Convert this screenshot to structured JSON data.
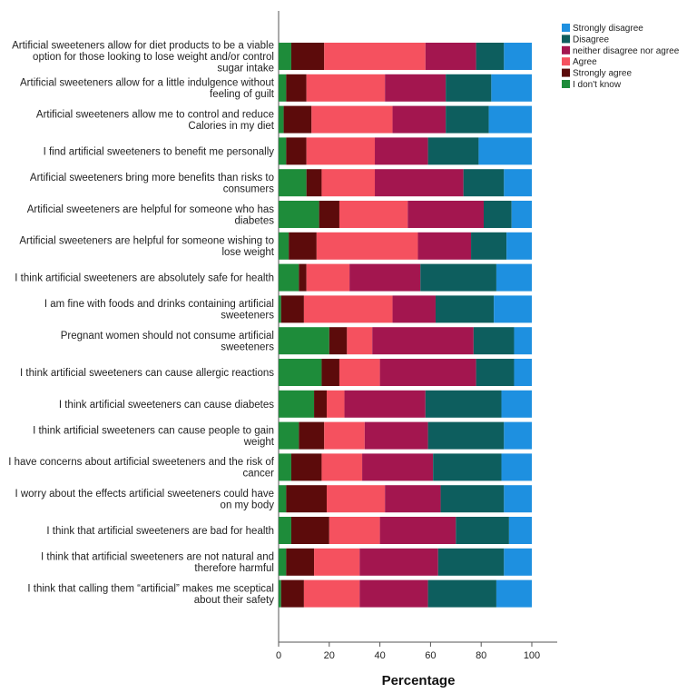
{
  "chart_data": {
    "type": "bar",
    "orientation": "horizontal",
    "stacked": true,
    "title": "",
    "xlabel": "Percentage",
    "ylabel": "",
    "xlim": [
      0,
      100
    ],
    "xticks": [
      "0",
      "20",
      "40",
      "60",
      "80",
      "100"
    ],
    "categories": [
      "Artificial sweeteners allow for diet products to be a viable option for those looking to lose weight and/or control sugar intake",
      "Artificial sweeteners allow for a little indulgence without feeling of guilt",
      "Artificial sweeteners allow me to control and reduce Calories in my diet",
      "I find artificial sweeteners to benefit me personally",
      "Artificial sweeteners bring more benefits than risks to consumers",
      "Artificial sweeteners are helpful for someone who has diabetes",
      "Artificial sweeteners are helpful for someone wishing to lose weight",
      "I think artificial sweeteners are absolutely safe for health",
      "I am fine with foods and drinks containing artificial sweeteners",
      "Pregnant women should not consume artificial sweeteners",
      "I think artificial sweeteners can cause allergic reactions",
      "I think artificial sweeteners can cause diabetes",
      "I think artificial sweeteners can cause people to gain weight",
      "I have concerns about artificial sweeteners and the risk of cancer",
      "I worry about the effects artificial sweeteners could have on my body",
      "I think that artificial sweeteners are bad for health",
      "I think that artificial sweeteners are not natural and therefore harmful",
      "I think that calling them “artificial” makes me sceptical about their safety"
    ],
    "category_lines": [
      [
        "Artificial sweeteners allow for diet products to be a viable",
        "option for those looking to lose weight and/or control",
        "sugar intake"
      ],
      [
        "Artificial sweeteners allow for a little indulgence without",
        "feeling of guilt"
      ],
      [
        "Artificial sweeteners allow me to control and reduce",
        "Calories in my diet"
      ],
      [
        "I find artificial sweeteners to benefit me personally"
      ],
      [
        "Artificial sweeteners bring more benefits than risks to",
        "consumers"
      ],
      [
        "Artificial sweeteners are helpful for someone who has",
        "diabetes"
      ],
      [
        "Artificial sweeteners are helpful for someone wishing to",
        "lose weight"
      ],
      [
        "I think artificial sweeteners are absolutely safe for health"
      ],
      [
        "I am fine with foods and drinks containing artificial",
        "sweeteners"
      ],
      [
        "Pregnant women should not consume artificial",
        "sweeteners"
      ],
      [
        "I think artificial sweeteners can cause allergic reactions"
      ],
      [
        "I think artificial sweeteners can cause diabetes"
      ],
      [
        "I think artificial sweeteners can cause people to gain",
        "weight"
      ],
      [
        "I have concerns about artificial sweeteners and the risk of",
        "cancer"
      ],
      [
        "I worry about the effects artificial sweeteners could have",
        "on my body"
      ],
      [
        "I think that artificial sweeteners are bad for health"
      ],
      [
        "I think that artificial sweeteners are not natural and",
        "therefore harmful"
      ],
      [
        "I think that calling them “artificial” makes me sceptical",
        "about their safety"
      ]
    ],
    "series": [
      {
        "name": "I don't know",
        "color": "#1e8c3a",
        "values": [
          5,
          3,
          2,
          3,
          11,
          16,
          4,
          8,
          1,
          20,
          17,
          14,
          8,
          5,
          3,
          5,
          3,
          1
        ]
      },
      {
        "name": "Strongly agree",
        "color": "#5c0b0b",
        "values": [
          13,
          8,
          11,
          8,
          6,
          8,
          11,
          3,
          9,
          7,
          7,
          5,
          10,
          12,
          16,
          15,
          11,
          9
        ]
      },
      {
        "name": "Agree",
        "color": "#f5515f",
        "values": [
          40,
          31,
          32,
          27,
          21,
          27,
          40,
          17,
          35,
          10,
          16,
          7,
          16,
          16,
          23,
          20,
          18,
          22
        ]
      },
      {
        "name": "neither disagree nor agree",
        "color": "#a3164f",
        "values": [
          20,
          24,
          21,
          21,
          35,
          30,
          21,
          28,
          17,
          40,
          38,
          32,
          25,
          28,
          22,
          30,
          31,
          27
        ]
      },
      {
        "name": "Disagree",
        "color": "#0d5e5e",
        "values": [
          11,
          18,
          17,
          20,
          16,
          11,
          14,
          30,
          23,
          16,
          15,
          30,
          30,
          27,
          25,
          21,
          26,
          27
        ]
      },
      {
        "name": "Strongly disagree",
        "color": "#1e90e0",
        "values": [
          11,
          16,
          17,
          21,
          11,
          8,
          10,
          14,
          15,
          7,
          7,
          12,
          11,
          12,
          11,
          9,
          11,
          14
        ]
      }
    ],
    "legend_order": [
      "Strongly disagree",
      "Disagree",
      "neither disagree nor agree",
      "Agree",
      "Strongly agree",
      "I don't know"
    ],
    "legend_position": "top-right",
    "grid": false
  }
}
